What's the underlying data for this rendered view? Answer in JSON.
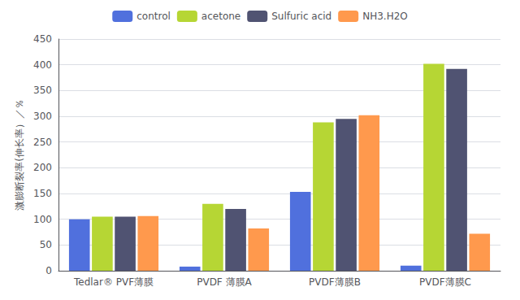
{
  "chart_data": {
    "type": "bar",
    "categories": [
      "Tedlar® PVF薄膜",
      "PVDF 薄膜A",
      "PVDF薄膜B",
      "PVDF薄膜C"
    ],
    "series": [
      {
        "name": "control",
        "values": [
          100,
          8,
          153,
          10
        ]
      },
      {
        "name": "acetone",
        "values": [
          105,
          130,
          288,
          402
        ]
      },
      {
        "name": "Sulfuric acid",
        "values": [
          105,
          120,
          295,
          392
        ]
      },
      {
        "name": "NH3.H2O",
        "values": [
          106,
          82,
          302,
          72
        ]
      }
    ],
    "ylabel": "溦膨断裂率(伸长率）／％",
    "ylim": [
      0,
      450
    ],
    "yticks": [
      0,
      50,
      100,
      150,
      200,
      250,
      300,
      350,
      400,
      450
    ],
    "grid": true,
    "legend": "top"
  }
}
